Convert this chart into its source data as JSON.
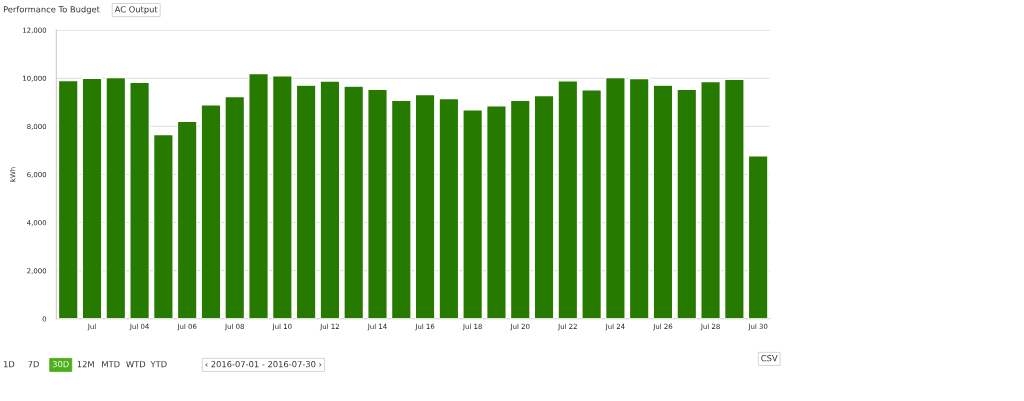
{
  "chart_data": {
    "type": "bar",
    "ylabel": "kWh",
    "categories": [
      null,
      "Jul",
      null,
      "Jul 04",
      null,
      "Jul 06",
      null,
      "Jul 08",
      null,
      "Jul 10",
      null,
      "Jul 12",
      null,
      "Jul 14",
      null,
      "Jul 16",
      null,
      "Jul 18",
      null,
      "Jul 20",
      null,
      "Jul 22",
      null,
      "Jul 24",
      null,
      "Jul 26",
      null,
      "Jul 28",
      null,
      "Jul 30"
    ],
    "series": [
      {
        "color": "#267a00",
        "values": [
          9900,
          10000,
          10030,
          9830,
          7660,
          8210,
          8890,
          9240,
          10190,
          10100,
          9710,
          9880,
          9670,
          9540,
          9080,
          9320,
          9150,
          8690,
          8850,
          9080,
          9280,
          9890,
          9520,
          10030,
          9990,
          9710,
          9540,
          9860,
          9950,
          6770
        ]
      }
    ],
    "ylim": [
      0,
      12000
    ],
    "yticks": [
      0,
      {
        "value": 2000,
        "label": "2,000"
      },
      {
        "value": 4000,
        "label": "4,000"
      },
      {
        "value": 6000,
        "label": "6,000"
      },
      {
        "value": 8000,
        "label": "8,000"
      },
      {
        "value": 10000,
        "label": "10,000"
      },
      {
        "value": 12000,
        "label": "12,000"
      }
    ],
    "grid": "y",
    "annotations": [
      "Performance To Budget",
      "AC Output",
      "1D",
      "7D",
      "30D",
      "12M",
      "MTD",
      "WTD",
      "YTD",
      "‹ 2016-07-01 - 2016-07-30 ›",
      "CSV"
    ]
  }
}
